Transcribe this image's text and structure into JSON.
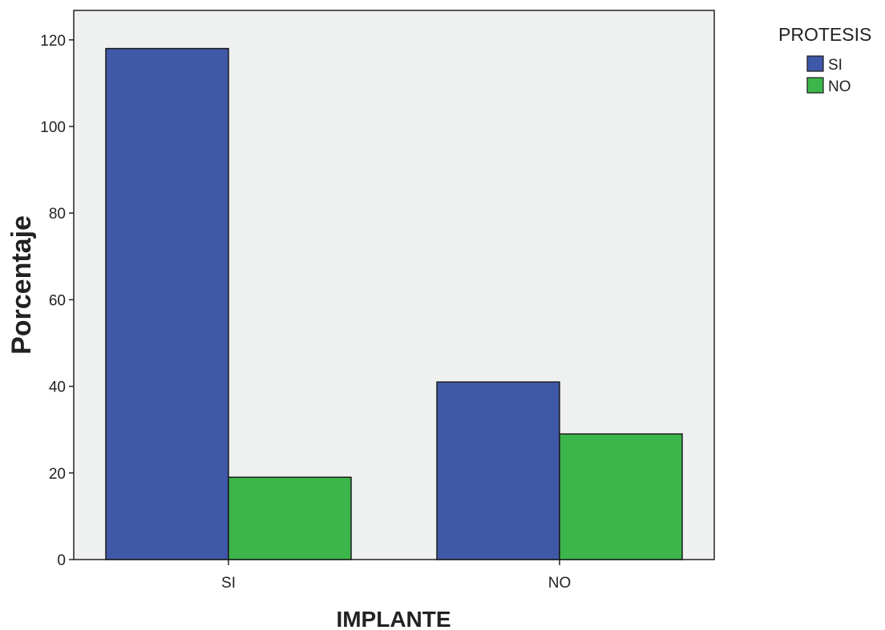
{
  "chart_data": {
    "type": "bar",
    "categories": [
      "SI",
      "NO"
    ],
    "series": [
      {
        "name": "SI",
        "values": [
          118,
          41
        ],
        "color": "#3f58a8"
      },
      {
        "name": "NO",
        "values": [
          19,
          29
        ],
        "color": "#3cb64b"
      }
    ],
    "xlabel": "IMPLANTE",
    "ylabel": "Porcentaje",
    "ylim": [
      0,
      120
    ],
    "yticks": [
      0,
      20,
      40,
      60,
      80,
      100,
      120
    ],
    "legend": {
      "title": "PROTESIS",
      "position": "top-right"
    },
    "grid": false,
    "plot_background": "#eff0f0"
  }
}
